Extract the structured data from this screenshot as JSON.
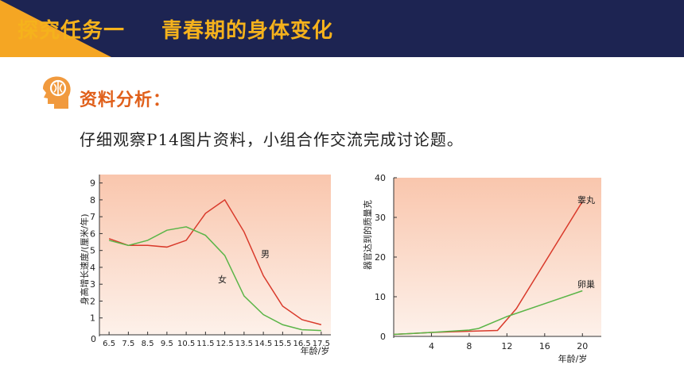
{
  "header": {
    "task_label": "探究任务一",
    "topic": "青春期的身体变化"
  },
  "section": {
    "label": "资料分析："
  },
  "instruction": "仔细观察P14图片资料，小组合作交流完成讨论题。",
  "colors": {
    "header_bg": "#1d2452",
    "header_text": "#f5b21c",
    "accent": "#f5a623",
    "section_label": "#e0601b",
    "male_line": "#d93a2b",
    "female_line": "#5bb548"
  },
  "chart_data": [
    {
      "type": "line",
      "xlabel": "年龄/岁",
      "ylabel": "身高增长速度/(厘米/年)",
      "x": [
        6.5,
        7.5,
        8.5,
        9.5,
        10.5,
        11.5,
        12.5,
        13.5,
        14.5,
        15.5,
        16.5,
        17.5
      ],
      "x_ticks": [
        "6.5",
        "7.5",
        "8.5",
        "9.5",
        "10.5",
        "11.5",
        "12.5",
        "13.5",
        "14.5",
        "15.5",
        "16.5",
        "17.5"
      ],
      "y_ticks": [
        "1",
        "2",
        "3",
        "4",
        "5",
        "6",
        "7",
        "8",
        "9"
      ],
      "y_zero_label": "0",
      "ylim": [
        0,
        9.5
      ],
      "xlim": [
        6.0,
        18.0
      ],
      "series": [
        {
          "name": "男",
          "color": "#d93a2b",
          "values": [
            5.7,
            5.3,
            5.3,
            5.2,
            5.6,
            7.2,
            8.0,
            6.1,
            3.5,
            1.7,
            0.9,
            0.6
          ]
        },
        {
          "name": "女",
          "color": "#5bb548",
          "values": [
            5.6,
            5.3,
            5.6,
            6.2,
            6.4,
            5.9,
            4.7,
            2.3,
            1.2,
            0.6,
            0.3,
            0.25
          ]
        }
      ],
      "grid": false
    },
    {
      "type": "line",
      "xlabel": "年龄/岁",
      "ylabel": "器官达到的质量克",
      "x_ticks": [
        "4",
        "8",
        "12",
        "16",
        "20"
      ],
      "y_ticks": [
        "10",
        "20",
        "30",
        "40"
      ],
      "y_zero_label": "0",
      "xlim": [
        0,
        22
      ],
      "ylim": [
        0,
        40
      ],
      "series": [
        {
          "name": "睾丸",
          "color": "#d93a2b",
          "x": [
            0,
            4,
            8,
            11,
            13,
            20
          ],
          "values": [
            0.5,
            1.0,
            1.3,
            1.5,
            7.0,
            34.0
          ]
        },
        {
          "name": "卵巢",
          "color": "#5bb548",
          "x": [
            0,
            4,
            8,
            9,
            12,
            20
          ],
          "values": [
            0.5,
            1.0,
            1.6,
            2.0,
            5.0,
            11.5
          ]
        }
      ],
      "grid": false
    }
  ]
}
